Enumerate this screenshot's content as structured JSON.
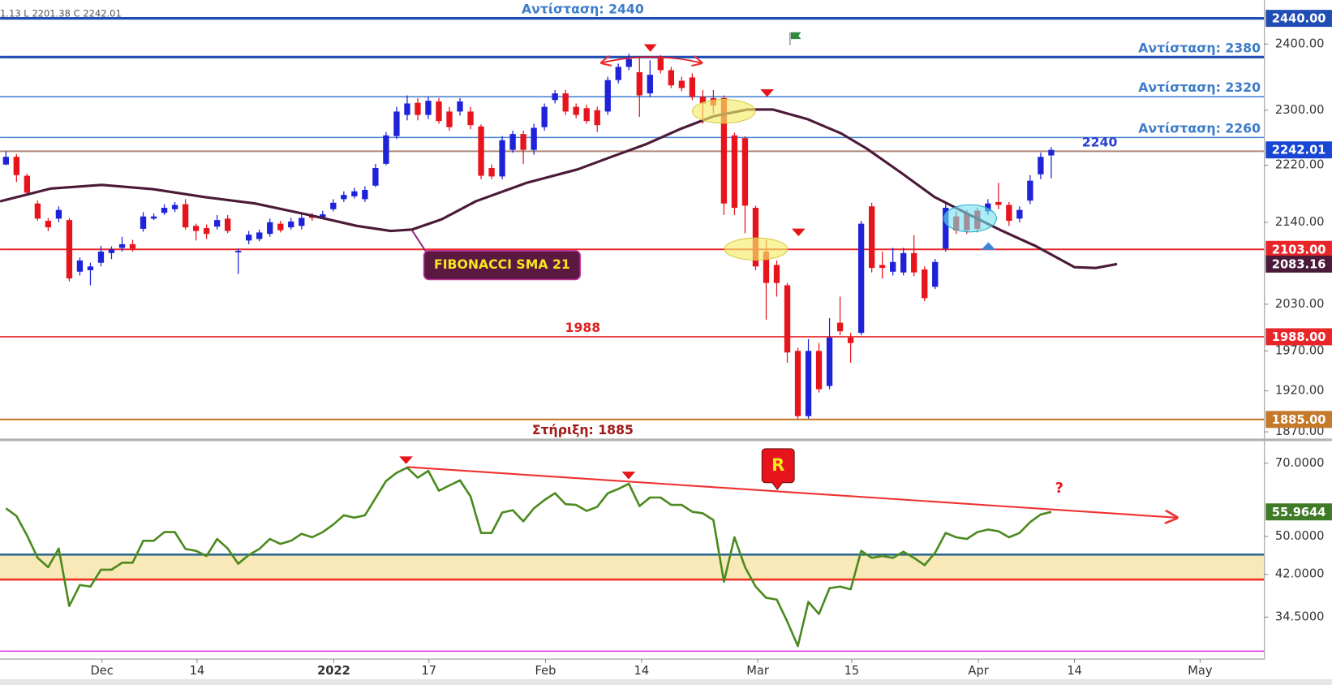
{
  "header": {
    "ohlc_text": "1.13  L 2201.38  C 2242.01"
  },
  "chart_data": [
    {
      "type": "candlestick",
      "xlim": [
        -0.56,
        119.15
      ],
      "xticks": [
        {
          "value": 9.09,
          "label": "Dec"
        },
        {
          "value": 18.1,
          "label": "14"
        },
        {
          "value": 31.05,
          "label": "2022"
        },
        {
          "value": 40.06,
          "label": "17"
        },
        {
          "value": 51.1,
          "label": "Feb"
        },
        {
          "value": 60.2,
          "label": "14"
        },
        {
          "value": 71.2,
          "label": "Mar"
        },
        {
          "value": 80.1,
          "label": "15"
        },
        {
          "value": 92.1,
          "label": "Apr"
        },
        {
          "value": 101.2,
          "label": "14"
        },
        {
          "value": 113.1,
          "label": "May"
        }
      ],
      "ylim": [
        1863,
        2469
      ],
      "log_scale": true,
      "yticks": [
        {
          "value": 2400,
          "label": "2400.00"
        },
        {
          "value": 2300,
          "label": "2300.00"
        },
        {
          "value": 2220,
          "label": "2220.00"
        },
        {
          "value": 2140,
          "label": "2140.00"
        },
        {
          "value": 2030,
          "label": "2030.00"
        },
        {
          "value": 1970,
          "label": "1970.00"
        },
        {
          "value": 1920,
          "label": "1920.00"
        },
        {
          "value": 1870,
          "label": "1870.00"
        }
      ],
      "up_color": "#1e22d8",
      "down_color": "#e8141c",
      "open": [
        2221,
        2232,
        2205,
        2166,
        2142,
        2145,
        2143,
        2073,
        2075,
        2085,
        2098,
        2105,
        2110,
        2131,
        2145,
        2153,
        2158,
        2165,
        2135,
        2132,
        2134,
        2145,
        2099,
        2115,
        2117,
        2124,
        2138,
        2133,
        2135,
        2150,
        2147,
        2158,
        2172,
        2176,
        2172,
        2191,
        2222,
        2262,
        2293,
        2311,
        2293,
        2313,
        2298,
        2298,
        2298,
        2276,
        2216,
        2204,
        2242,
        2265,
        2242,
        2275,
        2315,
        2325,
        2305,
        2303,
        2300,
        2298,
        2345,
        2365,
        2357,
        2325,
        2378,
        2360,
        2344,
        2349,
        2320,
        2318,
        2318,
        2263,
        2259,
        2160,
        2100,
        2082,
        2055,
        1970,
        1889,
        1970,
        1926,
        2006,
        1987,
        1993,
        2162,
        2082,
        2073,
        2072,
        2098,
        2076,
        2053,
        2104,
        2148,
        2152,
        2156,
        2155,
        2168,
        2164,
        2145,
        2170,
        2207,
        2234
      ],
      "high": [
        2240,
        2236,
        2208,
        2170,
        2146,
        2162,
        2146,
        2092,
        2085,
        2108,
        2107,
        2120,
        2116,
        2154,
        2152,
        2165,
        2168,
        2172,
        2138,
        2137,
        2150,
        2150,
        2104,
        2128,
        2130,
        2145,
        2142,
        2146,
        2152,
        2153,
        2156,
        2172,
        2183,
        2188,
        2190,
        2222,
        2268,
        2305,
        2322,
        2318,
        2320,
        2318,
        2305,
        2318,
        2305,
        2279,
        2221,
        2262,
        2270,
        2270,
        2280,
        2310,
        2330,
        2330,
        2310,
        2308,
        2305,
        2350,
        2370,
        2385,
        2380,
        2375,
        2383,
        2365,
        2350,
        2355,
        2330,
        2330,
        2322,
        2267,
        2262,
        2163,
        2115,
        2088,
        2058,
        1974,
        1985,
        1980,
        2012,
        2040,
        1993,
        2142,
        2167,
        2100,
        2105,
        2105,
        2122,
        2080,
        2090,
        2166,
        2155,
        2157,
        2160,
        2172,
        2195,
        2168,
        2162,
        2206,
        2238,
        2246
      ],
      "low": [
        2220,
        2196,
        2177,
        2142,
        2128,
        2140,
        2060,
        2068,
        2055,
        2080,
        2090,
        2100,
        2100,
        2127,
        2143,
        2150,
        2154,
        2130,
        2115,
        2117,
        2130,
        2125,
        2070,
        2110,
        2114,
        2120,
        2126,
        2130,
        2130,
        2142,
        2145,
        2155,
        2168,
        2173,
        2168,
        2189,
        2220,
        2258,
        2285,
        2285,
        2287,
        2280,
        2270,
        2292,
        2272,
        2200,
        2200,
        2200,
        2238,
        2222,
        2235,
        2270,
        2310,
        2293,
        2288,
        2280,
        2268,
        2293,
        2340,
        2360,
        2290,
        2320,
        2355,
        2333,
        2328,
        2315,
        2280,
        2295,
        2150,
        2150,
        2125,
        2075,
        2010,
        2040,
        1955,
        1886,
        1886,
        1918,
        1922,
        1990,
        1955,
        1990,
        2072,
        2064,
        2068,
        2068,
        2067,
        2034,
        2050,
        2100,
        2124,
        2124,
        2126,
        2150,
        2158,
        2135,
        2140,
        2165,
        2200,
        2201.38
      ],
      "close": [
        2232,
        2206,
        2181,
        2145,
        2133,
        2157,
        2064,
        2088,
        2080,
        2100,
        2103,
        2110,
        2104,
        2148,
        2148,
        2160,
        2164,
        2133,
        2128,
        2124,
        2143,
        2128,
        2101,
        2123,
        2126,
        2140,
        2129,
        2141,
        2146,
        2146,
        2151,
        2167,
        2178,
        2183,
        2185,
        2216,
        2263,
        2298,
        2310,
        2293,
        2314,
        2284,
        2275,
        2313,
        2278,
        2205,
        2204,
        2256,
        2265,
        2242,
        2274,
        2305,
        2325,
        2298,
        2293,
        2284,
        2278,
        2345,
        2365,
        2377,
        2322,
        2353,
        2360,
        2337,
        2333,
        2320,
        2310,
        2307,
        2166,
        2160,
        2163,
        2080,
        2058,
        2058,
        1968,
        1889,
        1970,
        1922,
        1987,
        1995,
        1980,
        2138,
        2078,
        2078,
        2086,
        2098,
        2072,
        2038,
        2086,
        2160,
        2129,
        2129,
        2131,
        2166,
        2164,
        2142,
        2157,
        2198,
        2232,
        2242.01
      ],
      "close_label": "2242.01",
      "close_badge_color": "#1846d4",
      "sma": {
        "name": "FIBONACCI SMA  21",
        "color": "#4a1a38",
        "x": [
          -0.56,
          4.27,
          9.09,
          13.92,
          18.75,
          23.58,
          28.4,
          33.23,
          36.45,
          38.46,
          41.27,
          44.49,
          49.32,
          54.15,
          57.36,
          60.58,
          63.8,
          67.02,
          70.24,
          72.65,
          75.87,
          79.09,
          81.5,
          84.72,
          87.94,
          91.16,
          94.37,
          97.59,
          101.21,
          103.22,
          105.23
        ],
        "values": [
          2169,
          2187,
          2192,
          2186,
          2175,
          2166,
          2151,
          2135,
          2128,
          2130,
          2144,
          2169,
          2195,
          2214,
          2232,
          2250,
          2272,
          2291,
          2301,
          2301,
          2287,
          2266,
          2244,
          2210,
          2175,
          2151,
          2128,
          2107,
          2079,
          2078,
          2083.16
        ],
        "last_label": "2083.16"
      },
      "hlines": [
        {
          "value": 2440,
          "color": "#1f4db3",
          "width": 3,
          "badge": "2440.00",
          "text": "Αντίσταση: 2440",
          "text_place": "center",
          "text_side": "above",
          "text_color": "#3d7cc9"
        },
        {
          "value": 2380,
          "color": "#1f4db3",
          "width": 3,
          "text": "Αντίσταση: 2380",
          "text_place": "right",
          "text_side": "above",
          "text_color": "#3d7cc9"
        },
        {
          "value": 2320,
          "color": "#4a86d4",
          "width": 1.5,
          "text": "Αντίσταση: 2320",
          "text_place": "right",
          "text_side": "above",
          "text_color": "#3d7cc9"
        },
        {
          "value": 2260,
          "color": "#4a86d4",
          "width": 1.5,
          "text": "Αντίσταση: 2260",
          "text_place": "right",
          "text_side": "above",
          "text_color": "#3d7cc9"
        },
        {
          "value": 2240,
          "color": "#b0877a",
          "width": 2,
          "text": "2240",
          "text_place": "last",
          "text_side": "above",
          "text_color": "#2a3fd0"
        },
        {
          "value": 2103,
          "color": "#e8262a",
          "width": 2,
          "badge": "2103.00"
        },
        {
          "value": 1988,
          "color": "#e8262a",
          "width": 1.5,
          "badge": "1988.00",
          "text": "1988",
          "text_place": "center",
          "text_side": "above",
          "text_color": "#e02020"
        },
        {
          "value": 1885,
          "color": "#c47a2a",
          "width": 2,
          "badge": "1885.00",
          "text": "Στήριξη: 1885",
          "text_place": "center",
          "text_side": "below",
          "text_color": "#a01818"
        }
      ]
    },
    {
      "type": "line",
      "ylim": [
        28.5,
        77.2
      ],
      "log_scale": true,
      "yticks": [
        {
          "value": 70,
          "label": "70.0000"
        },
        {
          "value": 50,
          "label": "50.0000"
        },
        {
          "value": 42,
          "label": "42.0000"
        },
        {
          "value": 34.5,
          "label": "34.5000"
        }
      ],
      "color": "#4b8a1e",
      "badge_color": "#3f7a26",
      "values": [
        56.9,
        54.9,
        50.2,
        45.3,
        43.4,
        47.3,
        36.3,
        40.0,
        39.7,
        42.9,
        42.9,
        44.3,
        44.3,
        49.0,
        49.0,
        51.0,
        51.0,
        47.2,
        46.8,
        45.7,
        49.4,
        47.3,
        44.1,
        45.9,
        47.2,
        49.4,
        48.3,
        49.0,
        50.6,
        49.8,
        51.0,
        52.8,
        55.1,
        54.5,
        55.1,
        59.6,
        64.5,
        67.0,
        68.6,
        65.5,
        67.6,
        61.7,
        63.2,
        64.7,
        60.1,
        50.8,
        50.8,
        55.8,
        56.4,
        53.6,
        56.9,
        59.1,
        61.0,
        58.0,
        57.8,
        56.2,
        57.3,
        61.0,
        62.2,
        63.7,
        57.5,
        59.8,
        59.8,
        57.8,
        57.8,
        56.0,
        55.6,
        53.9,
        40.6,
        49.8,
        43.4,
        39.7,
        37.7,
        37.4,
        33.8,
        30.2,
        37.0,
        35.0,
        39.4,
        39.7,
        39.2,
        46.8,
        45.3,
        45.7,
        45.3,
        46.6,
        45.3,
        43.8,
        46.4,
        50.8,
        49.8,
        49.4,
        51.0,
        51.6,
        51.2,
        49.8,
        50.8,
        53.4,
        55.3,
        55.9644
      ],
      "zone": [
        41,
        46
      ],
      "zone_color": "#f9e8b8",
      "hlines": [
        {
          "value": 46,
          "color": "#2e6a8f",
          "width": 2.5
        },
        {
          "value": 41,
          "color": "#f03020",
          "width": 2.5
        },
        {
          "value": 29.5,
          "color": "#e040e0",
          "width": 1.5
        }
      ],
      "trendline": {
        "x": [
          38,
          110.9
        ],
        "values": [
          68.8,
          54.5
        ],
        "color": "#f03030"
      },
      "annotations": [
        "R",
        "?"
      ]
    }
  ]
}
